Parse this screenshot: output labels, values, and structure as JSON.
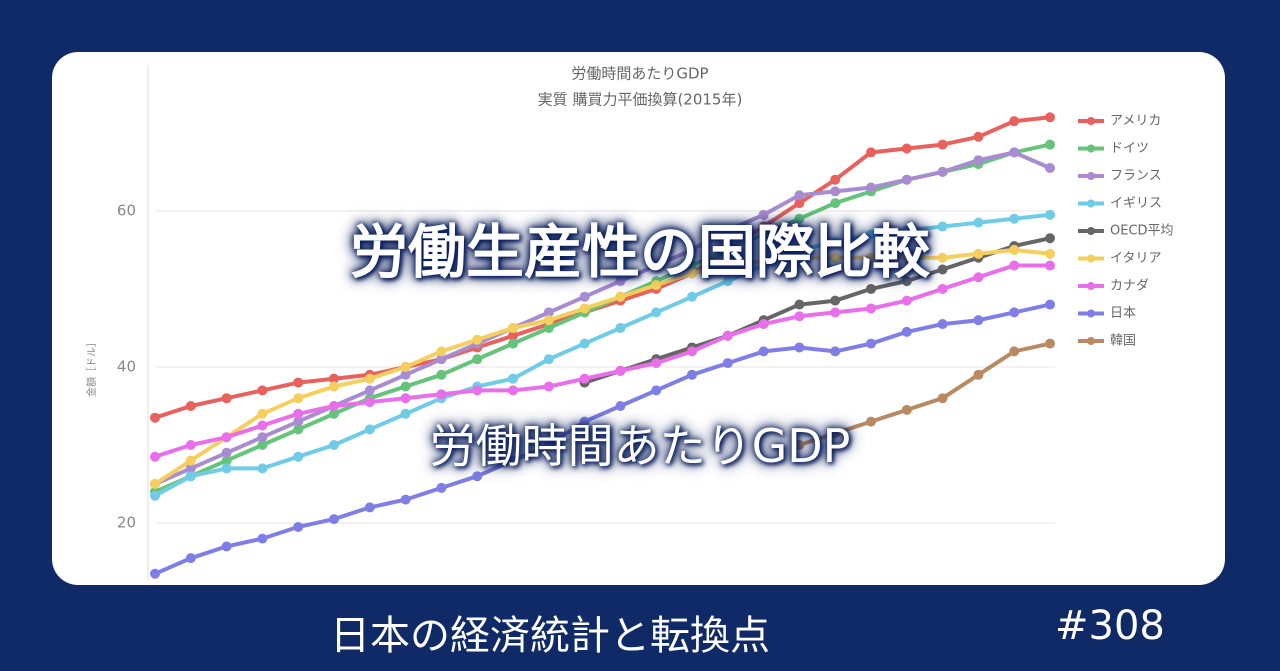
{
  "chart_data": {
    "type": "line",
    "title": "労働時間あたりGDP",
    "subtitle": "実質 購買力平価換算(2015年)",
    "y_label": "金額［ドル］",
    "categories": [
      null,
      null,
      null,
      null,
      null,
      null,
      null,
      null,
      null,
      null,
      null,
      null,
      null,
      null,
      null,
      null,
      null,
      null,
      null,
      null,
      null,
      null,
      null,
      null,
      null,
      null
    ],
    "ylim": [
      12.7,
      78.7
    ],
    "yticks": [
      20,
      40,
      60
    ],
    "grid": true,
    "series": [
      {
        "name": "アメリカ",
        "color": "#e8615d",
        "values": [
          33.5,
          35,
          36,
          37,
          38,
          38.5,
          39,
          40,
          41,
          42.5,
          44,
          45.5,
          47,
          48.5,
          50,
          52,
          55,
          58,
          61,
          64,
          67.5,
          68,
          68.5,
          69.5,
          71.5,
          72
        ]
      },
      {
        "name": "ドイツ",
        "color": "#63c47a",
        "values": [
          24,
          26,
          28,
          30,
          32,
          34,
          36,
          37.5,
          39,
          41,
          43,
          45,
          47,
          49,
          51,
          53,
          55,
          57,
          59,
          61,
          62.5,
          64,
          65,
          66,
          67.5,
          68.5
        ]
      },
      {
        "name": "フランス",
        "color": "#a98bd2",
        "values": [
          25,
          27,
          29,
          31,
          33,
          35,
          37,
          39,
          41,
          43,
          45,
          47,
          49,
          51,
          53,
          55,
          57.5,
          59.5,
          62,
          62.5,
          63,
          64,
          65,
          66.5,
          67.5,
          65.5
        ]
      },
      {
        "name": "イギリス",
        "color": "#6fcbe6",
        "values": [
          23.5,
          26,
          27,
          27,
          28.5,
          30,
          32,
          34,
          36,
          37.5,
          38.5,
          41,
          43,
          45,
          47,
          49,
          51,
          53,
          55,
          56,
          57,
          57.5,
          58,
          58.5,
          59,
          59.5
        ]
      },
      {
        "name": "OECD平均",
        "color": "#666666",
        "values": [
          null,
          null,
          null,
          null,
          null,
          null,
          null,
          null,
          null,
          null,
          null,
          null,
          38,
          39.5,
          41,
          42.5,
          44,
          46,
          48,
          48.5,
          50,
          51,
          52.5,
          54,
          55.5,
          56.5
        ]
      },
      {
        "name": "イタリア",
        "color": "#f5cf5e",
        "values": [
          25,
          28,
          31,
          34,
          36,
          37.5,
          38.5,
          40,
          42,
          43.5,
          45,
          46,
          47.5,
          49,
          50.5,
          52,
          53,
          53.5,
          54,
          54,
          54,
          54,
          54,
          54.5,
          55,
          54.5
        ]
      },
      {
        "name": "カナダ",
        "color": "#e96ee9",
        "values": [
          28.5,
          30,
          31,
          32.5,
          34,
          35,
          35.5,
          36,
          36.5,
          37,
          37,
          37.5,
          38.5,
          39.5,
          40.5,
          42,
          44,
          45.5,
          46.5,
          47,
          47.5,
          48.5,
          50,
          51.5,
          53,
          53
        ]
      },
      {
        "name": "日本",
        "color": "#7e7ee6",
        "values": [
          13.5,
          15.5,
          17,
          18,
          19.5,
          20.5,
          22,
          23,
          24.5,
          26,
          28,
          30,
          33,
          35,
          37,
          39,
          40.5,
          42,
          42.5,
          42,
          43,
          44.5,
          45.5,
          46,
          47,
          48
        ]
      },
      {
        "name": "韓国",
        "color": "#b98a62",
        "values": [
          null,
          null,
          null,
          null,
          null,
          null,
          null,
          null,
          null,
          null,
          null,
          null,
          null,
          null,
          null,
          null,
          null,
          null,
          30,
          31.5,
          33,
          34.5,
          36,
          39,
          42,
          43
        ]
      }
    ]
  },
  "overlay": {
    "headline": "労働生産性の国際比較",
    "subheading": "労働時間あたりGDP"
  },
  "footer": {
    "series_name": "日本の経済統計と転換点",
    "episode": "#308"
  }
}
